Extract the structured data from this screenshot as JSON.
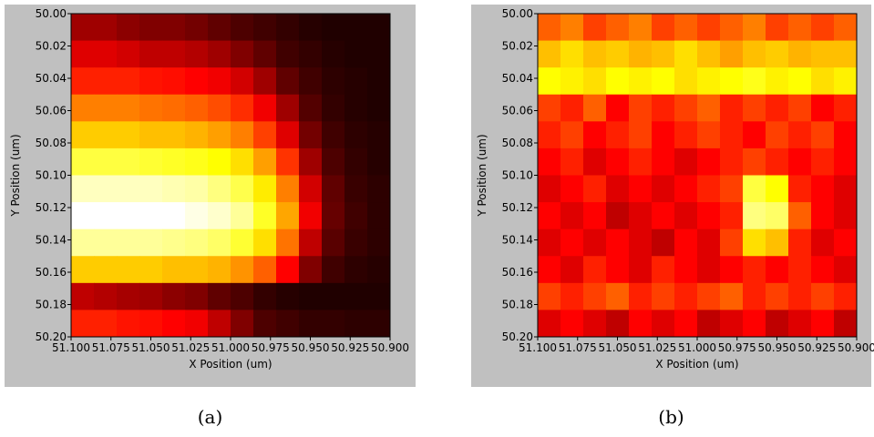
{
  "chart_data": [
    {
      "type": "heatmap",
      "caption": "(a)",
      "colormap": "hot",
      "xlabel": "X Position (um)",
      "ylabel": "Y Position (um)",
      "xlim": [
        51.1,
        50.9
      ],
      "ylim": [
        50.0,
        50.2
      ],
      "xticks": [
        {
          "value": 51.1,
          "label": "51.100"
        },
        51.075,
        {
          "value": 51.05,
          "label": "51.050"
        },
        51.025,
        {
          "value": 51.0,
          "label": "51.000"
        },
        50.975,
        {
          "value": 50.95,
          "label": "50.950"
        },
        50.925,
        {
          "value": 50.9,
          "label": "50.900"
        }
      ],
      "yticks": [
        {
          "value": 50.0,
          "label": "50.00"
        },
        50.02,
        50.04,
        50.06,
        50.08,
        {
          "value": 50.1,
          "label": "50.10"
        },
        50.12,
        50.14,
        50.16,
        50.18,
        {
          "value": 50.2,
          "label": "50.20"
        }
      ],
      "z": [
        [
          0.25,
          0.25,
          0.22,
          0.2,
          0.2,
          0.18,
          0.15,
          0.12,
          0.1,
          0.08,
          0.06,
          0.05,
          0.05,
          0.05
        ],
        [
          0.35,
          0.35,
          0.33,
          0.3,
          0.3,
          0.28,
          0.25,
          0.2,
          0.15,
          0.1,
          0.08,
          0.06,
          0.05,
          0.05
        ],
        [
          0.45,
          0.45,
          0.45,
          0.43,
          0.42,
          0.4,
          0.38,
          0.33,
          0.25,
          0.15,
          0.1,
          0.07,
          0.06,
          0.05
        ],
        [
          0.6,
          0.6,
          0.6,
          0.58,
          0.57,
          0.55,
          0.52,
          0.47,
          0.38,
          0.25,
          0.13,
          0.08,
          0.06,
          0.05
        ],
        [
          0.72,
          0.72,
          0.72,
          0.7,
          0.7,
          0.68,
          0.65,
          0.6,
          0.5,
          0.35,
          0.18,
          0.1,
          0.07,
          0.06
        ],
        [
          0.85,
          0.85,
          0.85,
          0.84,
          0.83,
          0.82,
          0.8,
          0.75,
          0.65,
          0.48,
          0.25,
          0.12,
          0.08,
          0.06
        ],
        [
          0.95,
          0.95,
          0.95,
          0.95,
          0.94,
          0.93,
          0.9,
          0.86,
          0.77,
          0.6,
          0.33,
          0.15,
          0.09,
          0.07
        ],
        [
          1,
          1,
          1,
          1,
          1,
          0.98,
          0.96,
          0.92,
          0.83,
          0.66,
          0.38,
          0.16,
          0.1,
          0.07
        ],
        [
          0.92,
          0.92,
          0.92,
          0.92,
          0.91,
          0.9,
          0.88,
          0.84,
          0.75,
          0.58,
          0.3,
          0.14,
          0.09,
          0.07
        ],
        [
          0.72,
          0.72,
          0.72,
          0.72,
          0.7,
          0.7,
          0.68,
          0.63,
          0.55,
          0.4,
          0.2,
          0.1,
          0.07,
          0.06
        ],
        [
          0.3,
          0.28,
          0.26,
          0.25,
          0.22,
          0.2,
          0.15,
          0.12,
          0.08,
          0.06,
          0.05,
          0.05,
          0.05,
          0.05
        ],
        [
          0.45,
          0.45,
          0.43,
          0.42,
          0.4,
          0.38,
          0.3,
          0.2,
          0.12,
          0.1,
          0.08,
          0.08,
          0.07,
          0.07
        ]
      ]
    },
    {
      "type": "heatmap",
      "caption": "(b)",
      "colormap": "hot",
      "xlabel": "X Position (um)",
      "ylabel": "Y Position (um)",
      "xlim": [
        51.1,
        50.9
      ],
      "ylim": [
        50.0,
        50.2
      ],
      "xticks": [
        {
          "value": 51.1,
          "label": "51.100"
        },
        51.075,
        {
          "value": 51.05,
          "label": "51.050"
        },
        51.025,
        {
          "value": 51.0,
          "label": "51.000"
        },
        50.975,
        {
          "value": 50.95,
          "label": "50.950"
        },
        50.925,
        {
          "value": 50.9,
          "label": "50.900"
        }
      ],
      "yticks": [
        {
          "value": 50.0,
          "label": "50.00"
        },
        50.02,
        50.04,
        50.06,
        50.08,
        {
          "value": 50.1,
          "label": "50.10"
        },
        50.12,
        50.14,
        50.16,
        50.18,
        {
          "value": 50.2,
          "label": "50.20"
        }
      ],
      "z": [
        [
          0.55,
          0.6,
          0.5,
          0.55,
          0.6,
          0.5,
          0.55,
          0.5,
          0.55,
          0.6,
          0.5,
          0.55,
          0.5,
          0.55
        ],
        [
          0.7,
          0.75,
          0.7,
          0.72,
          0.68,
          0.7,
          0.75,
          0.7,
          0.65,
          0.7,
          0.72,
          0.68,
          0.7,
          0.7
        ],
        [
          0.8,
          0.78,
          0.75,
          0.8,
          0.78,
          0.8,
          0.75,
          0.78,
          0.8,
          0.82,
          0.78,
          0.8,
          0.75,
          0.78
        ],
        [
          0.5,
          0.45,
          0.55,
          0.4,
          0.5,
          0.45,
          0.5,
          0.55,
          0.45,
          0.5,
          0.45,
          0.5,
          0.4,
          0.45
        ],
        [
          0.45,
          0.5,
          0.4,
          0.45,
          0.5,
          0.4,
          0.45,
          0.5,
          0.45,
          0.4,
          0.5,
          0.45,
          0.5,
          0.4
        ],
        [
          0.4,
          0.45,
          0.35,
          0.4,
          0.45,
          0.4,
          0.35,
          0.4,
          0.45,
          0.5,
          0.45,
          0.4,
          0.45,
          0.4
        ],
        [
          0.35,
          0.4,
          0.45,
          0.35,
          0.4,
          0.35,
          0.4,
          0.45,
          0.5,
          0.85,
          0.8,
          0.45,
          0.4,
          0.35
        ],
        [
          0.4,
          0.35,
          0.4,
          0.3,
          0.35,
          0.4,
          0.35,
          0.4,
          0.45,
          0.9,
          0.88,
          0.55,
          0.4,
          0.35
        ],
        [
          0.35,
          0.4,
          0.35,
          0.4,
          0.35,
          0.3,
          0.4,
          0.35,
          0.5,
          0.75,
          0.7,
          0.45,
          0.35,
          0.4
        ],
        [
          0.4,
          0.35,
          0.45,
          0.4,
          0.35,
          0.45,
          0.4,
          0.35,
          0.4,
          0.45,
          0.4,
          0.45,
          0.4,
          0.35
        ],
        [
          0.5,
          0.45,
          0.5,
          0.55,
          0.45,
          0.5,
          0.45,
          0.5,
          0.55,
          0.45,
          0.5,
          0.45,
          0.5,
          0.45
        ],
        [
          0.35,
          0.4,
          0.35,
          0.3,
          0.4,
          0.35,
          0.4,
          0.3,
          0.35,
          0.4,
          0.3,
          0.35,
          0.4,
          0.3
        ]
      ]
    }
  ]
}
